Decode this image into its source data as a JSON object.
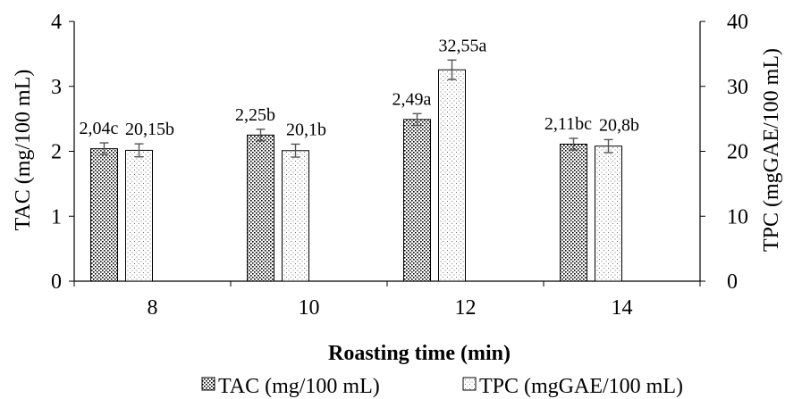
{
  "chart_data": {
    "type": "bar",
    "categories": [
      "8",
      "10",
      "12",
      "14"
    ],
    "xlabel": "Roasting time (min)",
    "ylabel_left": "TAC (mg/100 mL)",
    "ylabel_right": "TPC (mgGAE/100 mL)",
    "ylim_left": [
      0,
      4
    ],
    "ylim_right": [
      0,
      40
    ],
    "yticks_left": [
      "0",
      "1",
      "2",
      "3",
      "4"
    ],
    "yticks_right": [
      "0",
      "10",
      "20",
      "30",
      "40"
    ],
    "grid": false,
    "legend_position": "bottom",
    "series": [
      {
        "name": "TAC (mg/100 mL)",
        "axis": "left",
        "pattern": "dense-dots",
        "values": [
          2.04,
          2.25,
          2.49,
          2.11
        ],
        "errors": [
          0.09,
          0.09,
          0.09,
          0.09
        ],
        "labels": [
          "2,04c",
          "2,25b",
          "2,49a",
          "2,11bc"
        ]
      },
      {
        "name": "TPC (mgGAE/100 mL)",
        "axis": "right",
        "pattern": "light-dots",
        "values": [
          20.15,
          20.1,
          32.55,
          20.8
        ],
        "errors": [
          1.0,
          1.0,
          1.5,
          1.0
        ],
        "labels": [
          "20,15b",
          "20,1b",
          "32,55a",
          "20,8b"
        ]
      }
    ]
  }
}
